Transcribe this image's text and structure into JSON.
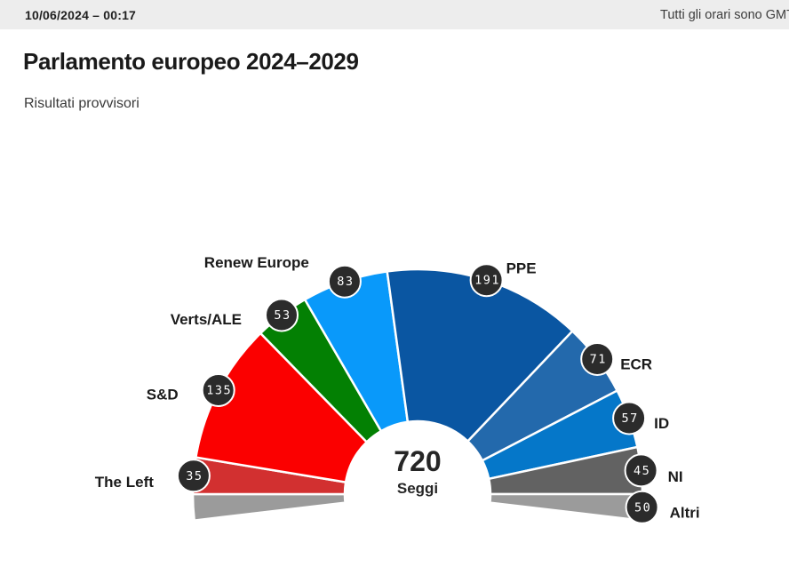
{
  "header": {
    "datetime": "10/06/2024 – 00:17",
    "timezone_note": "Tutti gli orari sono GMT"
  },
  "page": {
    "title": "Parlamento europeo 2024–2029",
    "subtitle": "Risultati provvisori"
  },
  "chart_data": {
    "type": "hemicycle-donut",
    "title": "Parlamento europeo 2024–2029",
    "subtitle": "Risultati provvisori",
    "total_seats": 720,
    "unit_label": "Seggi",
    "arrangement": "left-to-right, others group split across both ends of the arc",
    "groups": [
      {
        "name": "The Left",
        "seats": 35,
        "color": "#D23030"
      },
      {
        "name": "S&D",
        "seats": 135,
        "color": "#FB0000"
      },
      {
        "name": "Verts/ALE",
        "seats": 53,
        "color": "#038003"
      },
      {
        "name": "Renew Europe",
        "seats": 83,
        "color": "#0999FA"
      },
      {
        "name": "PPE",
        "seats": 191,
        "color": "#0A56A2"
      },
      {
        "name": "ECR",
        "seats": 71,
        "color": "#2369AC"
      },
      {
        "name": "ID",
        "seats": 57,
        "color": "#0577C9"
      },
      {
        "name": "NI",
        "seats": 45,
        "color": "#626262"
      },
      {
        "name": "Altri",
        "seats": 50,
        "color": "#9B9B9B",
        "split_across_ends": true
      }
    ],
    "badge": {
      "bg": "#2B2B2B",
      "ring": "#FFFFFF",
      "text_color": "#FFFFFF"
    },
    "legend_position": "around-arc"
  }
}
